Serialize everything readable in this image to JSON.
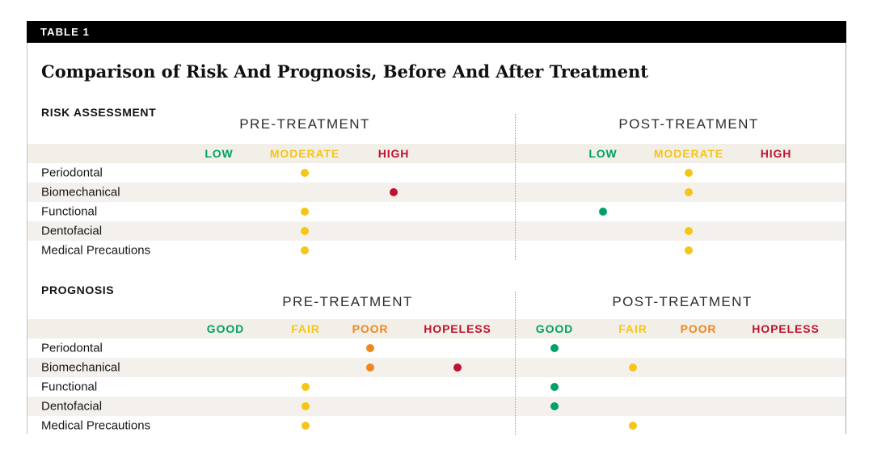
{
  "table_tag": "TABLE 1",
  "title": "Comparison of Risk And Prognosis, Before And After Treatment",
  "colors": {
    "green": "#00a169",
    "yellow": "#f5c518",
    "orange": "#f0861e",
    "red": "#c0122e"
  },
  "level_colors": {
    "LOW": "green",
    "MODERATE": "yellow",
    "HIGH": "red",
    "GOOD": "green",
    "FAIR": "yellow",
    "POOR": "orange",
    "HOPELESS": "red"
  },
  "risk": {
    "section_label": "RISK ASSESSMENT",
    "pre_header": "PRE-TREATMENT",
    "post_header": "POST-TREATMENT",
    "levels": [
      "LOW",
      "MODERATE",
      "HIGH"
    ],
    "rows": [
      {
        "label": "Periodontal",
        "pre": [
          "MODERATE"
        ],
        "post": [
          "MODERATE"
        ]
      },
      {
        "label": "Biomechanical",
        "pre": [
          "HIGH"
        ],
        "post": [
          "MODERATE"
        ]
      },
      {
        "label": "Functional",
        "pre": [
          "MODERATE"
        ],
        "post": [
          "LOW"
        ]
      },
      {
        "label": "Dentofacial",
        "pre": [
          "MODERATE"
        ],
        "post": [
          "MODERATE"
        ]
      },
      {
        "label": "Medical Precautions",
        "pre": [
          "MODERATE"
        ],
        "post": [
          "MODERATE"
        ]
      }
    ]
  },
  "prognosis": {
    "section_label": "PROGNOSIS",
    "pre_header": "PRE-TREATMENT",
    "post_header": "POST-TREATMENT",
    "levels": [
      "GOOD",
      "FAIR",
      "POOR",
      "HOPELESS"
    ],
    "rows": [
      {
        "label": "Periodontal",
        "pre": [
          "POOR"
        ],
        "post": [
          "GOOD"
        ]
      },
      {
        "label": "Biomechanical",
        "pre": [
          "POOR",
          "HOPELESS"
        ],
        "post": [
          "FAIR"
        ]
      },
      {
        "label": "Functional",
        "pre": [
          "FAIR"
        ],
        "post": [
          "GOOD"
        ]
      },
      {
        "label": "Dentofacial",
        "pre": [
          "FAIR"
        ],
        "post": [
          "GOOD"
        ]
      },
      {
        "label": "Medical Precautions",
        "pre": [
          "FAIR"
        ],
        "post": [
          "FAIR"
        ]
      }
    ]
  }
}
